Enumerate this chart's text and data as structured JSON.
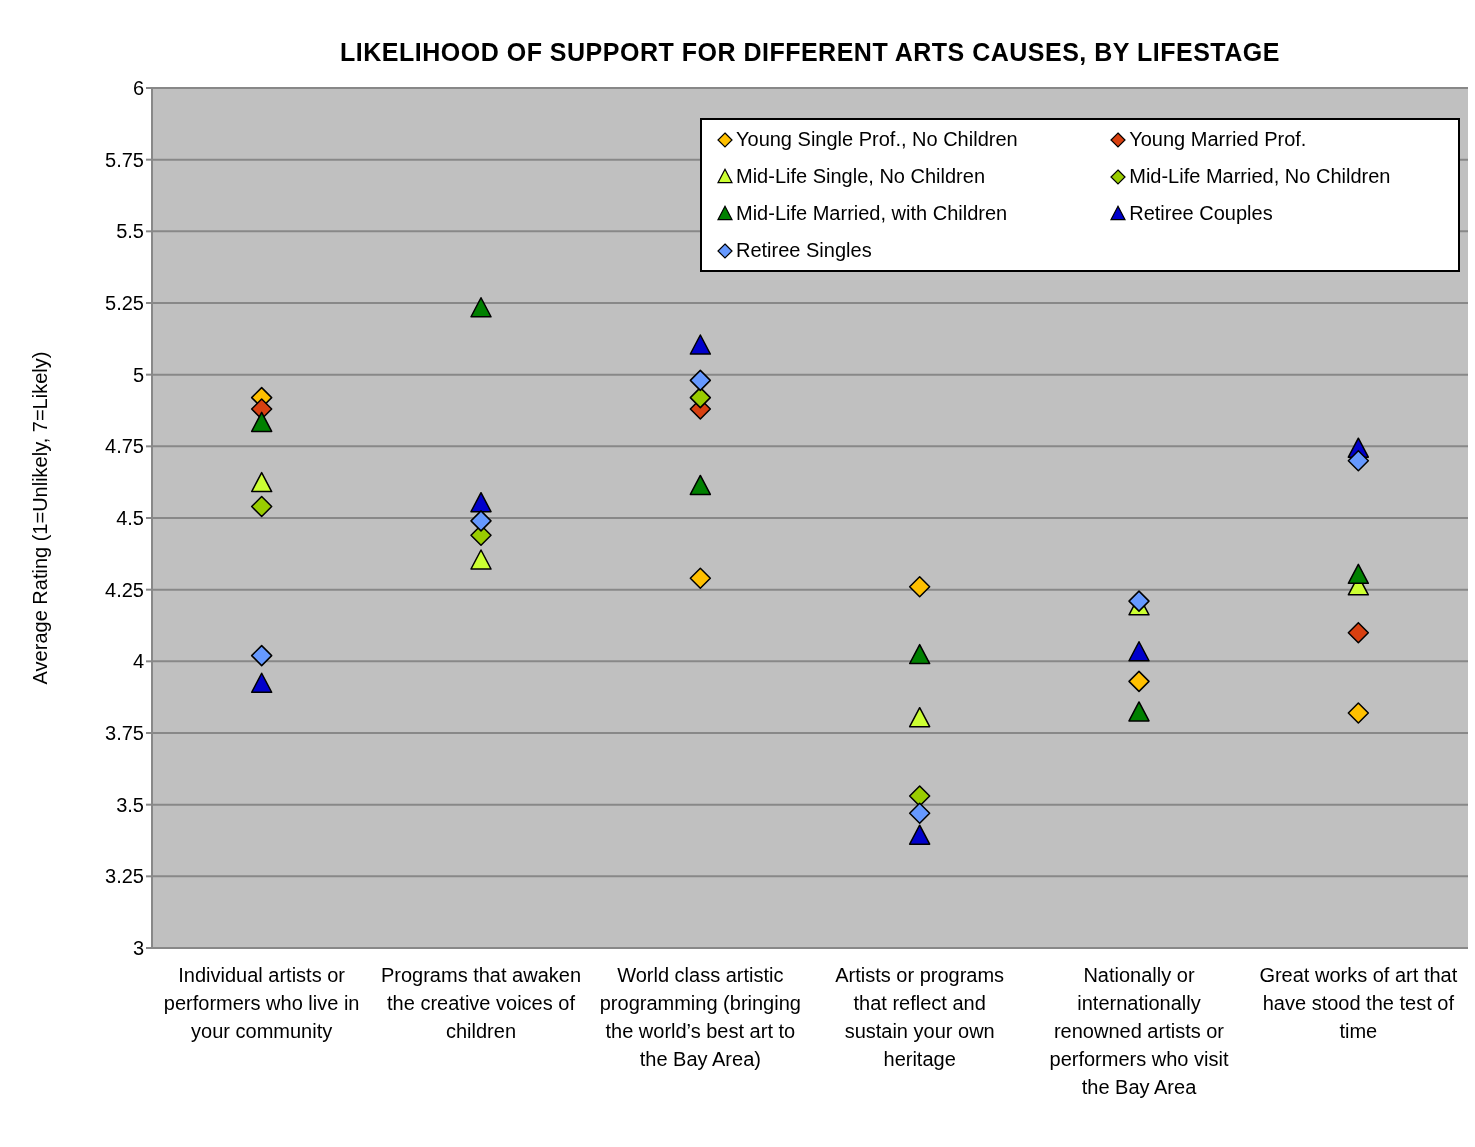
{
  "chart_data": {
    "type": "scatter",
    "title": "LIKELIHOOD OF SUPPORT FOR DIFFERENT ARTS CAUSES, BY LIFESTAGE",
    "ylabel": "Average Rating (1=Unlikely, 7=Likely)",
    "categories": [
      "Individual artists or performers who live in your community",
      "Programs that awaken the creative voices of children",
      "World class artistic programming (bringing the world’s best art to the Bay Area)",
      "Artists or programs that reflect and sustain your own heritage",
      "Nationally or internationally renowned artists or performers who visit the Bay Area",
      "Great works of art that have stood the test of time"
    ],
    "ylim": [
      3,
      6
    ],
    "yticks": [
      3,
      3.25,
      3.5,
      3.75,
      4,
      4.25,
      4.5,
      4.75,
      5,
      5.25,
      5.5,
      5.75,
      6
    ],
    "grid": "y",
    "legend": "top right",
    "series": [
      {
        "name": "Young Single Prof., No Children",
        "color": "#ffc000",
        "marker": "diamond",
        "values": [
          4.92,
          null,
          4.29,
          4.26,
          3.93,
          3.82
        ]
      },
      {
        "name": "Young Married Prof.",
        "color": "#d84010",
        "marker": "diamond",
        "values": [
          4.88,
          null,
          4.88,
          null,
          null,
          4.1
        ]
      },
      {
        "name": "Mid-Life Single, No Children",
        "color": "#ccff33",
        "marker": "triangle",
        "values": [
          4.62,
          4.35,
          null,
          3.8,
          4.19,
          4.26
        ]
      },
      {
        "name": "Mid-Life Married, No Children",
        "color": "#99cc00",
        "marker": "diamond",
        "values": [
          4.54,
          4.44,
          4.92,
          3.53,
          null,
          null
        ]
      },
      {
        "name": "Mid-Life Married, with Children",
        "color": "#008000",
        "marker": "triangle",
        "values": [
          4.83,
          5.23,
          4.61,
          4.02,
          3.82,
          4.3
        ]
      },
      {
        "name": "Retiree Couples",
        "color": "#0000cc",
        "marker": "triangle",
        "values": [
          3.92,
          4.55,
          5.1,
          3.39,
          4.03,
          4.74
        ]
      },
      {
        "name": "Retiree Singles",
        "color": "#6699ff",
        "marker": "diamond",
        "values": [
          4.02,
          4.49,
          4.98,
          3.47,
          4.21,
          4.7
        ]
      }
    ]
  }
}
